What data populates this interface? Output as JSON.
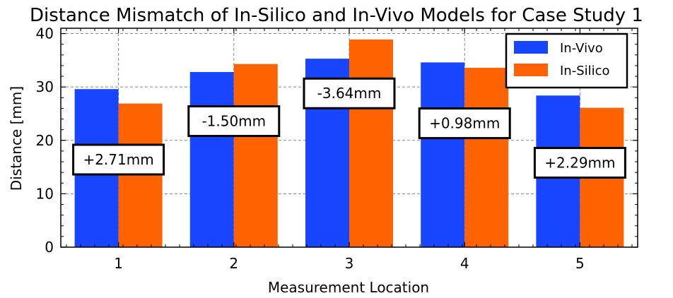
{
  "chart_data": {
    "type": "bar",
    "title": "Distance Mismatch of In-Silico and In-Vivo Models for Case Study 1",
    "xlabel": "Measurement Location",
    "ylabel": "Distance [mm]",
    "categories": [
      "1",
      "2",
      "3",
      "4",
      "5"
    ],
    "ylim": [
      0,
      41
    ],
    "yticks": [
      0,
      10,
      20,
      30,
      40
    ],
    "grid": true,
    "legend_position": "top-right",
    "series": [
      {
        "name": "In-Vivo",
        "color": "#1846FF",
        "values": [
          29.6,
          32.8,
          35.3,
          34.6,
          28.4
        ]
      },
      {
        "name": "In-Silico",
        "color": "#FF6200",
        "values": [
          26.9,
          34.3,
          38.9,
          33.6,
          26.1
        ]
      }
    ],
    "annotations": [
      {
        "text": "+2.71mm",
        "x": 1,
        "y": 16.4
      },
      {
        "text": "-1.50mm",
        "x": 2,
        "y": 23.6
      },
      {
        "text": "-3.64mm",
        "x": 3,
        "y": 28.8
      },
      {
        "text": "+0.98mm",
        "x": 4,
        "y": 23.2
      },
      {
        "text": "+2.29mm",
        "x": 5,
        "y": 15.8
      }
    ]
  }
}
